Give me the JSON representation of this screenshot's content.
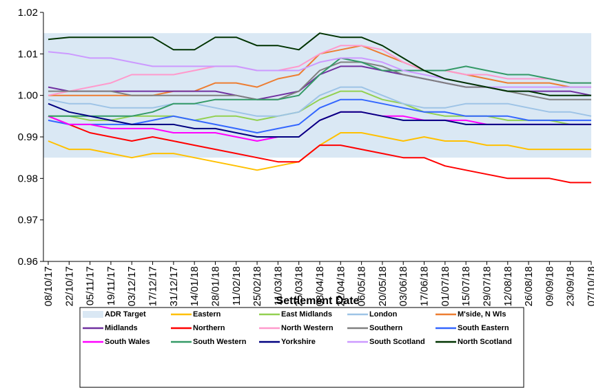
{
  "chart_data": {
    "type": "line",
    "x_label": "Settlement Date",
    "categories": [
      "08/10/17",
      "22/10/17",
      "05/11/17",
      "19/11/17",
      "03/12/17",
      "17/12/17",
      "31/12/17",
      "14/01/18",
      "28/01/18",
      "11/02/18",
      "25/02/18",
      "11/03/18",
      "25/03/18",
      "08/04/18",
      "22/04/18",
      "06/05/18",
      "20/05/18",
      "03/06/18",
      "17/06/18",
      "01/07/18",
      "15/07/18",
      "29/07/18",
      "12/08/18",
      "26/08/18",
      "09/09/18",
      "23/09/18",
      "07/10/18"
    ],
    "ylim": [
      0.96,
      1.02
    ],
    "yticks": [
      0.96,
      0.97,
      0.98,
      0.99,
      {
        "value": 1,
        "label": "1.00"
      },
      1.01,
      1.02
    ],
    "grid": false,
    "band": {
      "name": "ADR Target",
      "color": "#dae8f4",
      "values": [
        0.985,
        1.015
      ]
    },
    "series": [
      {
        "name": "Eastern",
        "color": "#ffc000",
        "values": [
          0.989,
          0.987,
          0.987,
          0.986,
          0.985,
          0.986,
          0.986,
          0.985,
          0.984,
          0.983,
          0.982,
          0.983,
          0.984,
          0.988,
          0.991,
          0.991,
          0.99,
          0.989,
          0.99,
          0.989,
          0.989,
          0.988,
          0.988,
          0.987,
          0.987,
          0.987,
          0.987
        ]
      },
      {
        "name": "East Midlands",
        "color": "#92d050",
        "values": [
          0.995,
          0.995,
          0.994,
          0.994,
          0.995,
          0.995,
          0.995,
          0.994,
          0.995,
          0.995,
          0.994,
          0.995,
          0.996,
          0.999,
          1.001,
          1.001,
          0.999,
          0.998,
          0.996,
          0.995,
          0.995,
          0.995,
          0.994,
          0.994,
          0.994,
          0.993,
          0.993
        ]
      },
      {
        "name": "London",
        "color": "#9dc3e6",
        "values": [
          0.999,
          0.998,
          0.998,
          0.997,
          0.997,
          0.997,
          0.998,
          0.998,
          0.997,
          0.996,
          0.995,
          0.995,
          0.996,
          1.0,
          1.002,
          1.002,
          1.0,
          0.998,
          0.997,
          0.997,
          0.998,
          0.998,
          0.998,
          0.997,
          0.996,
          0.996,
          0.995
        ]
      },
      {
        "name": "M'side, N Wls",
        "color": "#ed7d31",
        "values": [
          1.0,
          1.0,
          1.0,
          1.0,
          1.0,
          1.0,
          1.001,
          1.001,
          1.003,
          1.003,
          1.002,
          1.004,
          1.005,
          1.01,
          1.011,
          1.012,
          1.01,
          1.008,
          1.006,
          1.006,
          1.005,
          1.004,
          1.003,
          1.003,
          1.003,
          1.002,
          1.002
        ]
      },
      {
        "name": "Midlands",
        "color": "#7030a0",
        "values": [
          1.002,
          1.001,
          1.001,
          1.001,
          1.001,
          1.001,
          1.001,
          1.001,
          1.001,
          1.0,
          0.999,
          1.0,
          1.001,
          1.005,
          1.007,
          1.007,
          1.006,
          1.005,
          1.004,
          1.003,
          1.002,
          1.002,
          1.001,
          1.001,
          1.001,
          1.001,
          1.0
        ]
      },
      {
        "name": "Northern",
        "color": "#ff0000",
        "values": [
          0.995,
          0.993,
          0.991,
          0.99,
          0.989,
          0.99,
          0.989,
          0.988,
          0.987,
          0.986,
          0.985,
          0.984,
          0.984,
          0.988,
          0.988,
          0.987,
          0.986,
          0.985,
          0.985,
          0.983,
          0.982,
          0.981,
          0.98,
          0.98,
          0.98,
          0.979,
          0.979
        ]
      },
      {
        "name": "North Western",
        "color": "#ff99cc",
        "values": [
          1.0,
          1.001,
          1.002,
          1.003,
          1.005,
          1.005,
          1.005,
          1.006,
          1.007,
          1.007,
          1.006,
          1.006,
          1.007,
          1.01,
          1.012,
          1.012,
          1.011,
          1.008,
          1.006,
          1.006,
          1.005,
          1.005,
          1.004,
          1.004,
          1.004,
          1.003,
          1.003
        ]
      },
      {
        "name": "Southern",
        "color": "#808080",
        "values": [
          1.001,
          1.001,
          1.001,
          1.001,
          1.0,
          1.0,
          1.0,
          1.0,
          1.0,
          1.0,
          0.999,
          0.999,
          1.001,
          1.006,
          1.008,
          1.008,
          1.007,
          1.005,
          1.004,
          1.003,
          1.002,
          1.002,
          1.001,
          1.0,
          0.999,
          0.999,
          0.999
        ]
      },
      {
        "name": "South Eastern",
        "color": "#3366ff",
        "values": [
          0.994,
          0.993,
          0.993,
          0.993,
          0.993,
          0.994,
          0.995,
          0.994,
          0.993,
          0.992,
          0.991,
          0.992,
          0.993,
          0.997,
          0.999,
          0.999,
          0.998,
          0.997,
          0.996,
          0.996,
          0.995,
          0.995,
          0.995,
          0.994,
          0.994,
          0.994,
          0.994
        ]
      },
      {
        "name": "South Wales",
        "color": "#ff00ff",
        "values": [
          0.995,
          0.993,
          0.993,
          0.992,
          0.992,
          0.992,
          0.991,
          0.991,
          0.991,
          0.99,
          0.989,
          0.99,
          0.99,
          0.994,
          0.996,
          0.996,
          0.995,
          0.995,
          0.994,
          0.994,
          0.994,
          0.993,
          0.993,
          0.993,
          0.993,
          0.993,
          0.993
        ]
      },
      {
        "name": "South Western",
        "color": "#339966",
        "values": [
          0.995,
          0.995,
          0.995,
          0.995,
          0.995,
          0.996,
          0.998,
          0.998,
          0.999,
          0.999,
          0.999,
          0.999,
          1.0,
          1.005,
          1.009,
          1.008,
          1.006,
          1.006,
          1.006,
          1.006,
          1.007,
          1.006,
          1.005,
          1.005,
          1.004,
          1.003,
          1.003
        ]
      },
      {
        "name": "Yorkshire",
        "color": "#000080",
        "values": [
          0.998,
          0.996,
          0.995,
          0.994,
          0.993,
          0.993,
          0.993,
          0.992,
          0.992,
          0.991,
          0.99,
          0.99,
          0.99,
          0.994,
          0.996,
          0.996,
          0.995,
          0.994,
          0.994,
          0.994,
          0.993,
          0.993,
          0.993,
          0.993,
          0.993,
          0.993,
          0.993
        ]
      },
      {
        "name": "South Scotland",
        "color": "#cc99ff",
        "values": [
          1.0105,
          1.01,
          1.009,
          1.009,
          1.008,
          1.007,
          1.007,
          1.007,
          1.007,
          1.007,
          1.006,
          1.006,
          1.006,
          1.008,
          1.009,
          1.009,
          1.008,
          1.006,
          1.005,
          1.004,
          1.003,
          1.002,
          1.002,
          1.002,
          1.002,
          1.002,
          1.002
        ]
      },
      {
        "name": "North Scotland",
        "color": "#003300",
        "values": [
          1.0135,
          1.014,
          1.014,
          1.014,
          1.014,
          1.014,
          1.011,
          1.011,
          1.014,
          1.014,
          1.012,
          1.012,
          1.011,
          1.015,
          1.014,
          1.014,
          1.012,
          1.009,
          1.006,
          1.004,
          1.003,
          1.002,
          1.001,
          1.001,
          1.0,
          1.0,
          1.0
        ]
      }
    ]
  }
}
